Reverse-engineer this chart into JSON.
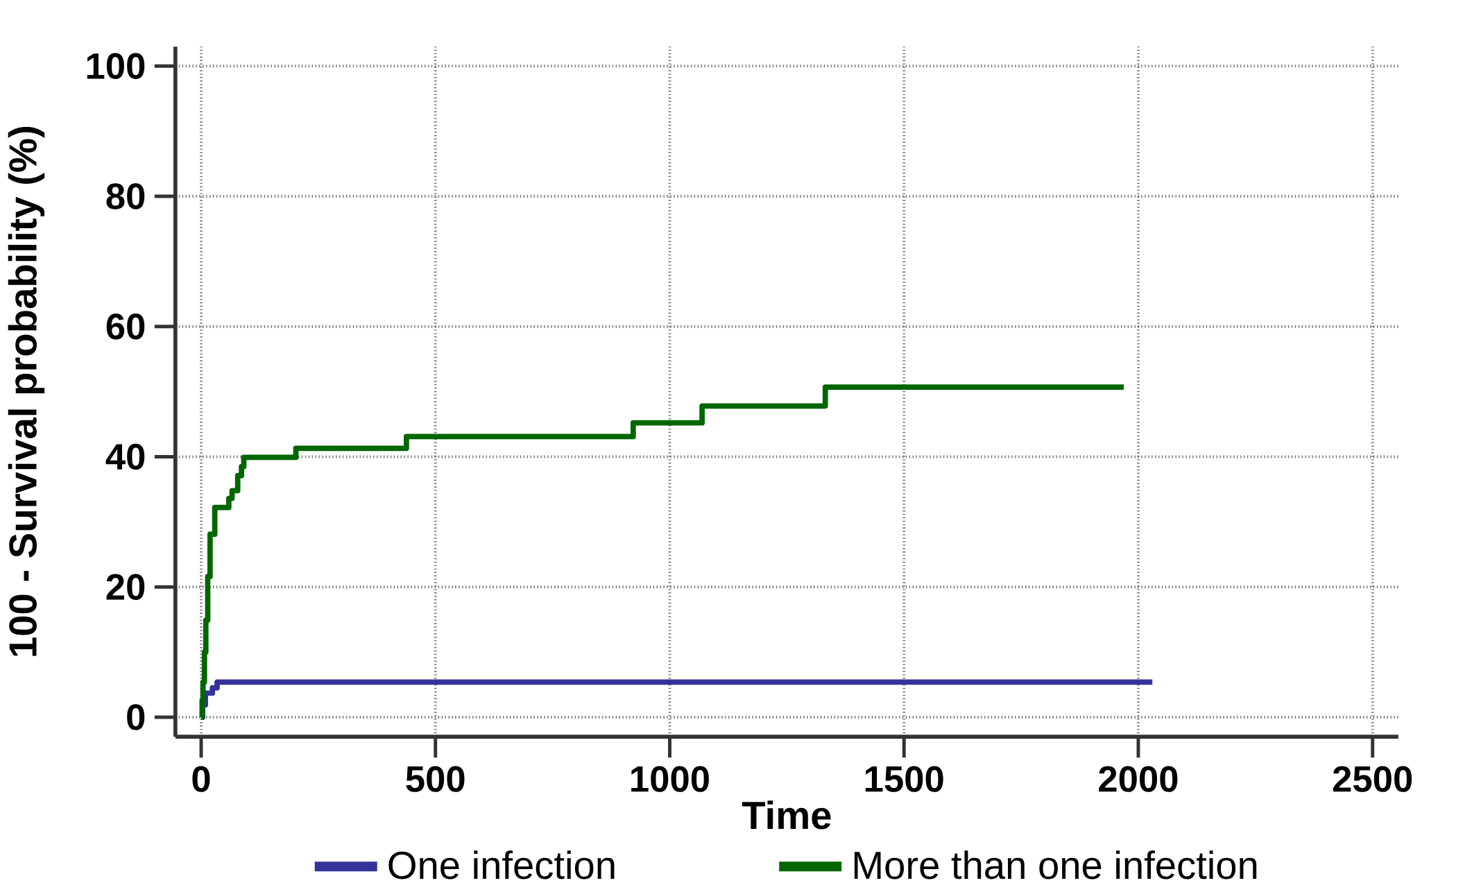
{
  "chart_data": {
    "type": "step",
    "xlabel": "Time",
    "ylabel": "100 - Survival probability (%)",
    "xlim": [
      -55,
      2555
    ],
    "ylim": [
      -3,
      103
    ],
    "xticks": [
      0,
      500,
      1000,
      1500,
      2000,
      2500
    ],
    "yticks": [
      0,
      20,
      40,
      60,
      80,
      100
    ],
    "grid": true,
    "legend": "bottom",
    "line_style": "solid",
    "series": [
      {
        "name": "One infection",
        "color": "#333399",
        "x": [
          0,
          3,
          9,
          24,
          34,
          2030
        ],
        "values": [
          0,
          1.9,
          3.7,
          4.5,
          5.4,
          5.4
        ]
      },
      {
        "name": "More than one infection",
        "color": "#006600",
        "x": [
          0,
          2,
          4,
          7,
          10,
          14,
          19,
          29,
          59,
          66,
          78,
          86,
          91,
          202,
          438,
          922,
          1069,
          1332,
          1969
        ],
        "values": [
          0,
          2.6,
          5.4,
          10,
          14.9,
          21.6,
          28.1,
          32.2,
          33.6,
          34.8,
          37.1,
          38.5,
          39.9,
          41.3,
          43.1,
          45.2,
          47.8,
          50.7,
          50.7
        ]
      }
    ]
  }
}
